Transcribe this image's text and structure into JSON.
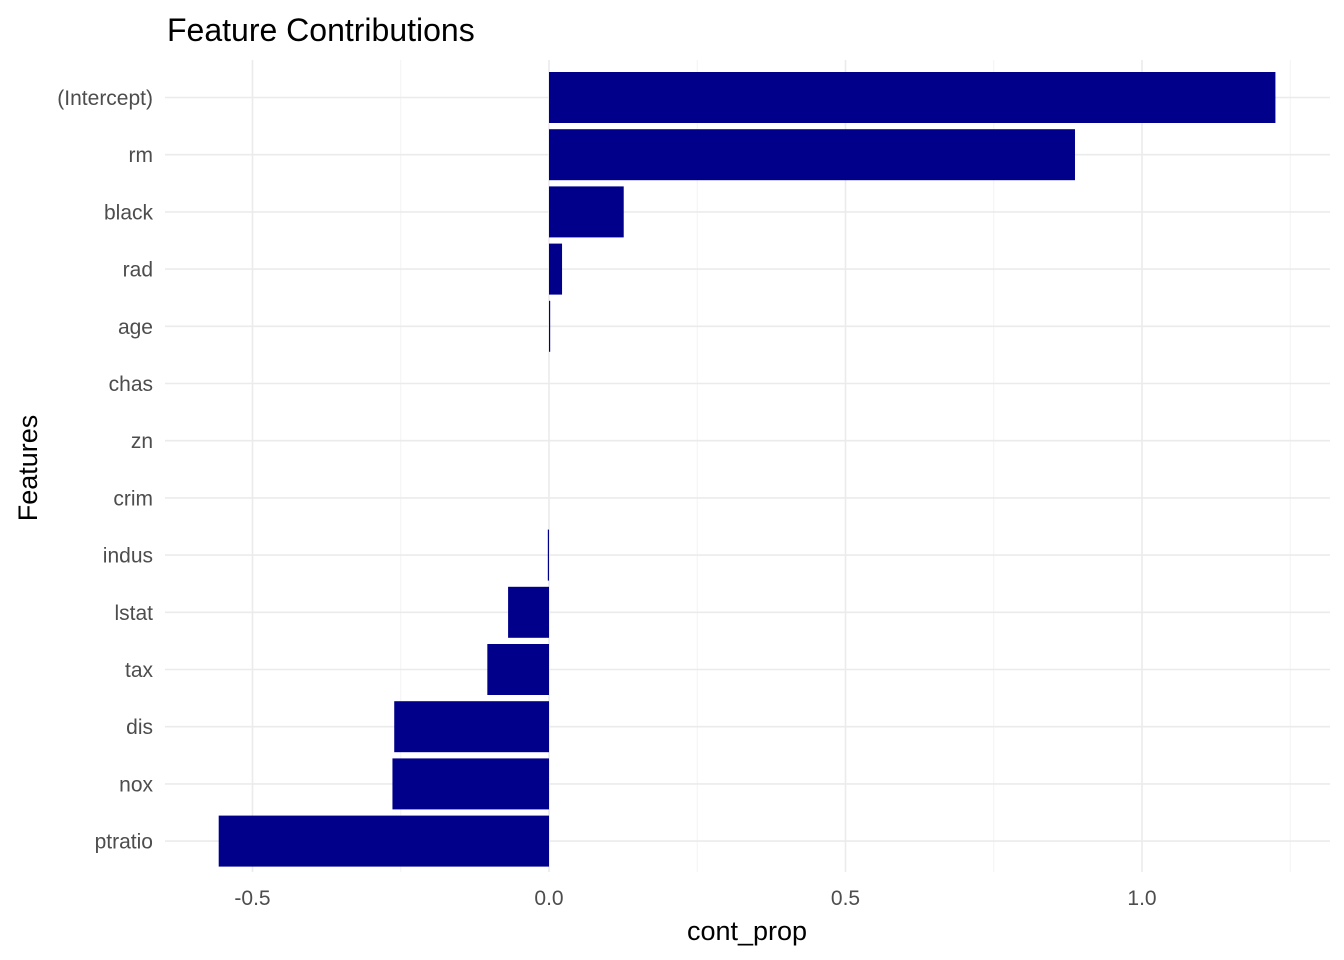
{
  "chart_data": {
    "type": "bar",
    "orientation": "horizontal",
    "title": "Feature Contributions",
    "xlabel": "cont_prop",
    "ylabel": "Features",
    "categories": [
      "(Intercept)",
      "rm",
      "black",
      "rad",
      "age",
      "chas",
      "zn",
      "crim",
      "indus",
      "lstat",
      "tax",
      "dis",
      "nox",
      "ptratio"
    ],
    "values": [
      1.225,
      0.887,
      0.126,
      0.022,
      0.002,
      0.0,
      0.0,
      0.0,
      -0.002,
      -0.069,
      -0.104,
      -0.261,
      -0.264,
      -0.557
    ],
    "xlim": [
      -0.6,
      1.3
    ],
    "xticks": [
      -0.5,
      0.0,
      0.5,
      1.0
    ],
    "xtick_labels": [
      "-0.5",
      "0.0",
      "0.5",
      "1.0"
    ],
    "bar_color": "#00008B",
    "grid": true,
    "legend": "none"
  }
}
